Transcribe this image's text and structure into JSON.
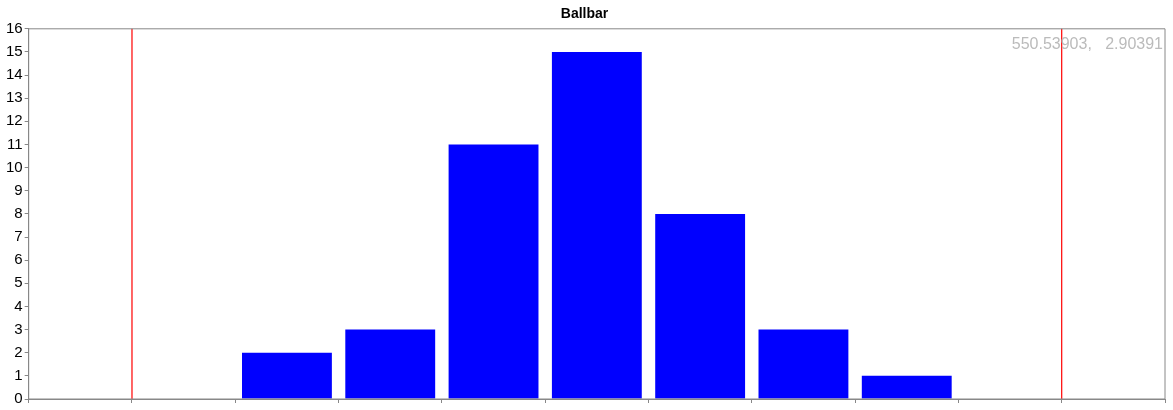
{
  "chart_data": {
    "type": "bar",
    "title": "Ballbar",
    "categories": [
      null,
      null,
      null,
      null,
      null,
      null,
      null,
      null,
      null,
      null,
      null
    ],
    "values": [
      null,
      null,
      2,
      3,
      11,
      15,
      8,
      3,
      1,
      null,
      null
    ],
    "color": "#0000ff",
    "ylim": [
      0,
      16
    ],
    "yticks": [
      0,
      1,
      2,
      3,
      4,
      5,
      6,
      7,
      8,
      9,
      10,
      11,
      12,
      13,
      14,
      15,
      16
    ],
    "annotations": [
      "550.53903,   2.90391"
    ],
    "tick_labels": "y",
    "grid": false,
    "legend": false
  }
}
